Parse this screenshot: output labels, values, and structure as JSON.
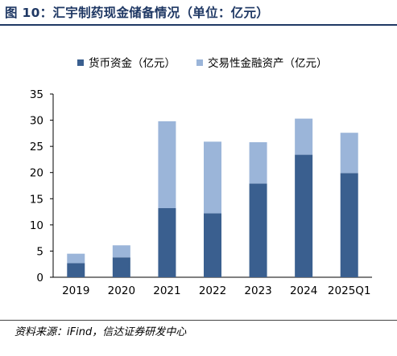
{
  "figure_title": "图 10：汇宇制药现金储备情况（单位：亿元）",
  "source_note": "资料来源：iFind，信达证券研发中心",
  "colors": {
    "title": "#1f3864",
    "series_1": "#3a5f8f",
    "series_2": "#9bb5d9"
  },
  "chart_data": {
    "type": "bar",
    "stacked": true,
    "title": "",
    "xlabel": "",
    "ylabel": "",
    "categories": [
      "2019",
      "2020",
      "2021",
      "2022",
      "2023",
      "2024",
      "2025Q1"
    ],
    "series": [
      {
        "name": "货币资金（亿元）",
        "values": [
          2.7,
          3.8,
          13.2,
          12.2,
          17.9,
          23.4,
          19.9
        ]
      },
      {
        "name": "交易性金融资产（亿元）",
        "values": [
          1.8,
          2.3,
          16.6,
          13.7,
          7.9,
          6.9,
          7.7
        ]
      }
    ],
    "ylim": [
      0,
      35
    ],
    "yticks": [
      0,
      5,
      10,
      15,
      20,
      25,
      30,
      35
    ],
    "grid": false,
    "legend_position": "top"
  }
}
